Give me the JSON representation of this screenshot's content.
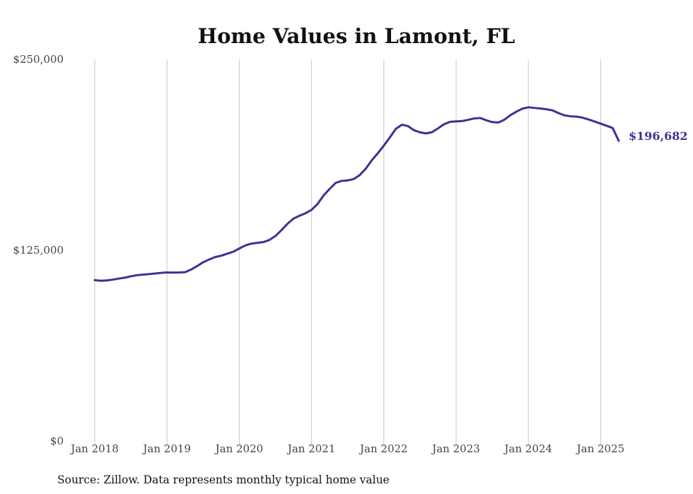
{
  "chart_data": {
    "type": "line",
    "title": "Home Values in Lamont, FL",
    "xlabel": "",
    "ylabel": "",
    "ylim": [
      0,
      250000
    ],
    "y_ticks": [
      {
        "value": 0,
        "label": "$0"
      },
      {
        "value": 125000,
        "label": "$125,000"
      },
      {
        "value": 250000,
        "label": "$250,000"
      }
    ],
    "x_ticks": [
      {
        "value": "2018-01",
        "label": "Jan 2018"
      },
      {
        "value": "2019-01",
        "label": "Jan 2019"
      },
      {
        "value": "2020-01",
        "label": "Jan 2020"
      },
      {
        "value": "2021-01",
        "label": "Jan 2021"
      },
      {
        "value": "2022-01",
        "label": "Jan 2022"
      },
      {
        "value": "2023-01",
        "label": "Jan 2023"
      },
      {
        "value": "2024-01",
        "label": "Jan 2024"
      },
      {
        "value": "2025-01",
        "label": "Jan 2025"
      }
    ],
    "xlim": [
      "2018-01",
      "2025-04"
    ],
    "grid": "vertical",
    "series_color": "#3b3293",
    "x": [
      "2018-01",
      "2018-02",
      "2018-03",
      "2018-04",
      "2018-05",
      "2018-06",
      "2018-07",
      "2018-08",
      "2018-09",
      "2018-10",
      "2018-11",
      "2018-12",
      "2019-01",
      "2019-02",
      "2019-03",
      "2019-04",
      "2019-05",
      "2019-06",
      "2019-07",
      "2019-08",
      "2019-09",
      "2019-10",
      "2019-11",
      "2019-12",
      "2020-01",
      "2020-02",
      "2020-03",
      "2020-04",
      "2020-05",
      "2020-06",
      "2020-07",
      "2020-08",
      "2020-09",
      "2020-10",
      "2020-11",
      "2020-12",
      "2021-01",
      "2021-02",
      "2021-03",
      "2021-04",
      "2021-05",
      "2021-06",
      "2021-07",
      "2021-08",
      "2021-09",
      "2021-10",
      "2021-11",
      "2021-12",
      "2022-01",
      "2022-02",
      "2022-03",
      "2022-04",
      "2022-05",
      "2022-06",
      "2022-07",
      "2022-08",
      "2022-09",
      "2022-10",
      "2022-11",
      "2022-12",
      "2023-01",
      "2023-02",
      "2023-03",
      "2023-04",
      "2023-05",
      "2023-06",
      "2023-07",
      "2023-08",
      "2023-09",
      "2023-10",
      "2023-11",
      "2023-12",
      "2024-01",
      "2024-02",
      "2024-03",
      "2024-04",
      "2024-05",
      "2024-06",
      "2024-07",
      "2024-08",
      "2024-09",
      "2024-10",
      "2024-11",
      "2024-12",
      "2025-01",
      "2025-02",
      "2025-03",
      "2025-04"
    ],
    "series": [
      {
        "name": "",
        "values": [
          105400,
          105000,
          105200,
          105700,
          106400,
          107000,
          107900,
          108600,
          109000,
          109300,
          109700,
          110100,
          110400,
          110300,
          110400,
          110600,
          112300,
          114600,
          117100,
          118900,
          120500,
          121400,
          122700,
          124000,
          126100,
          128100,
          129300,
          129800,
          130300,
          131700,
          134300,
          138100,
          142300,
          145700,
          147600,
          149200,
          151400,
          155300,
          160900,
          165100,
          169100,
          170400,
          170700,
          171600,
          174200,
          178400,
          183900,
          188500,
          193500,
          198900,
          204500,
          207200,
          206300,
          203600,
          202200,
          201500,
          202300,
          204800,
          207500,
          209100,
          209400,
          209600,
          210400,
          211300,
          211600,
          210100,
          208900,
          208600,
          210400,
          213400,
          215700,
          217700,
          218600,
          218200,
          217800,
          217300,
          216600,
          214800,
          213300,
          212700,
          212500,
          211800,
          210600,
          209300,
          207900,
          206500,
          205000,
          196682
        ]
      }
    ],
    "end_label": "$196,682",
    "source": "Source: Zillow. Data represents monthly typical home value"
  }
}
